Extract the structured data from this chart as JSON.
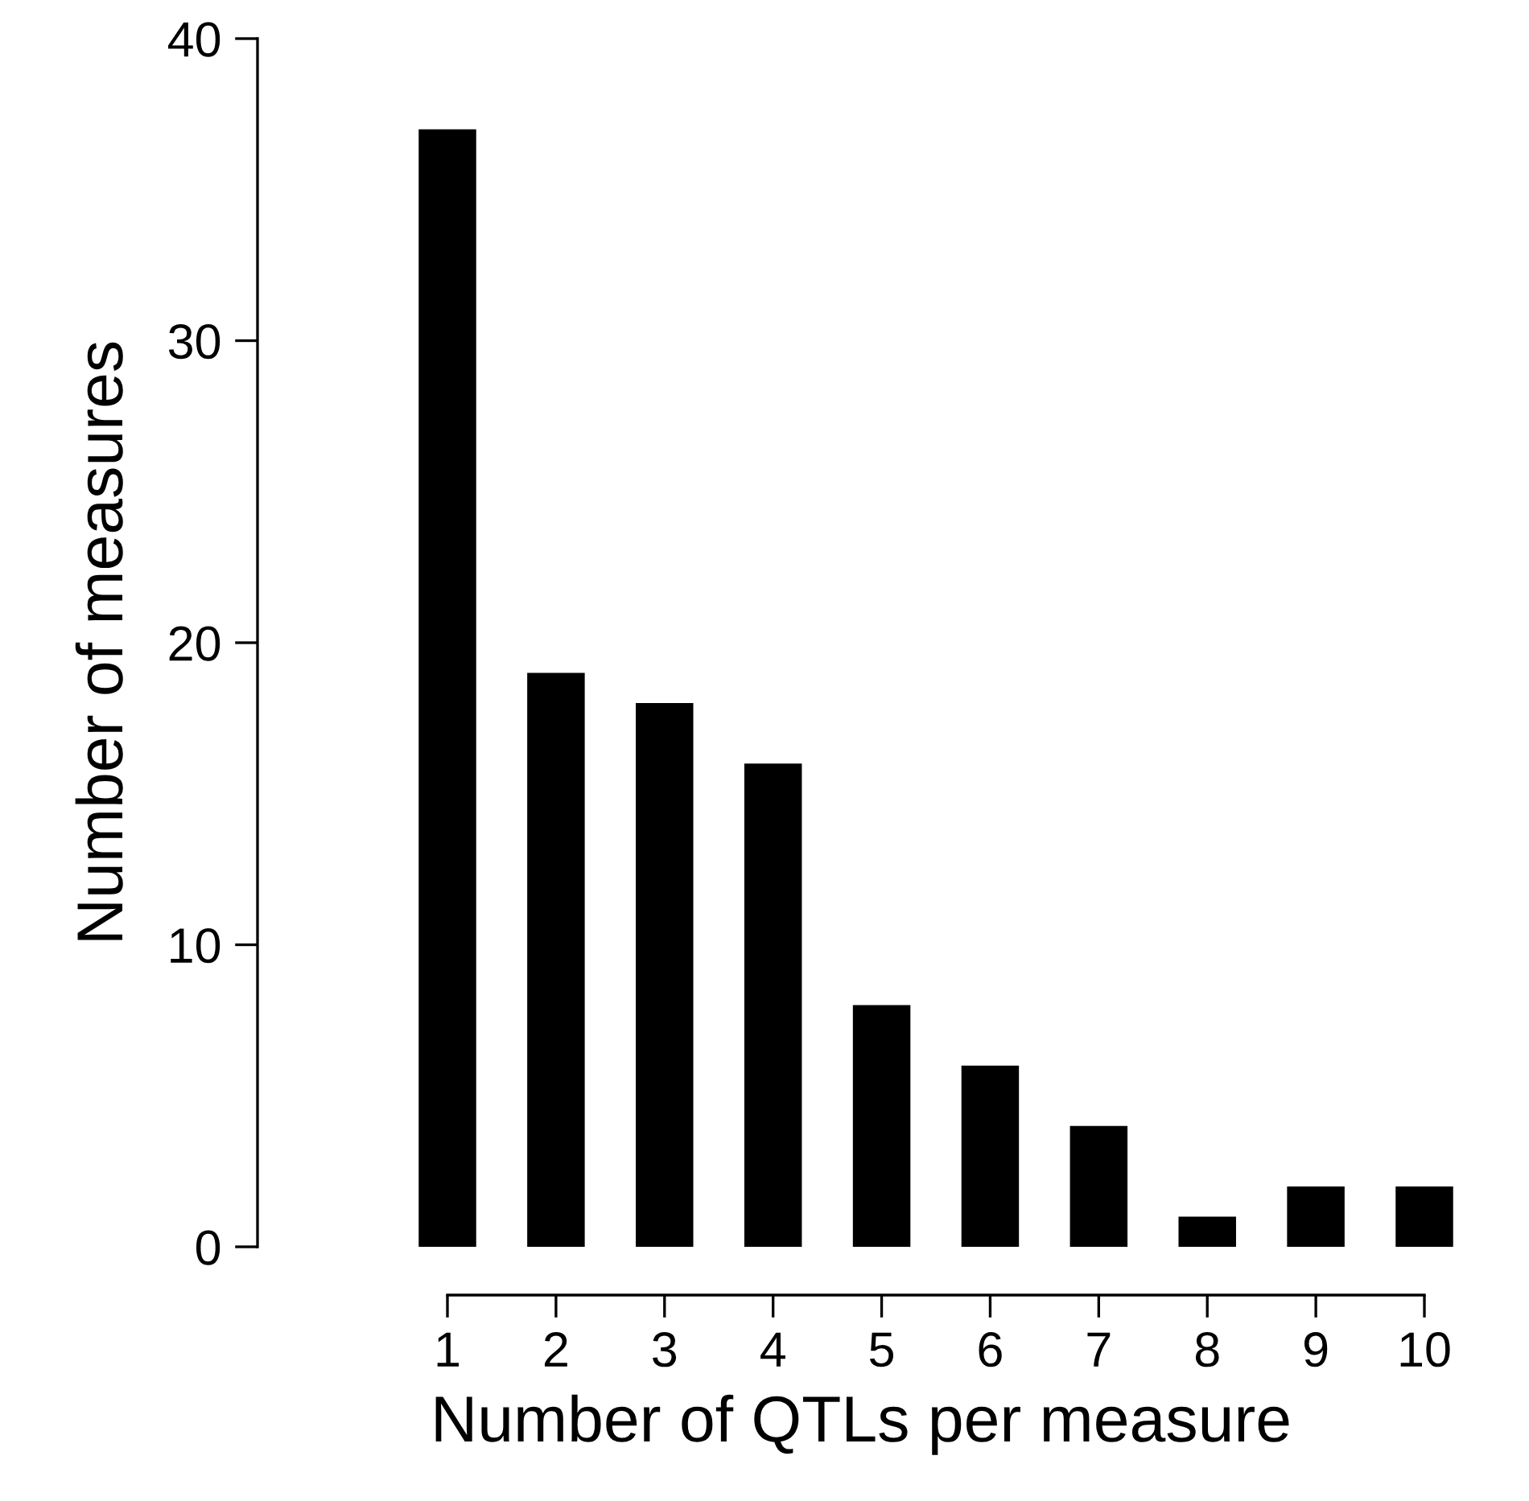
{
  "chart_data": {
    "type": "bar",
    "xlabel": "Number of QTLs per measure",
    "ylabel": "Number of measures",
    "categories": [
      "1",
      "2",
      "3",
      "4",
      "5",
      "6",
      "7",
      "8",
      "9",
      "10"
    ],
    "values": [
      37,
      19,
      18,
      16,
      8,
      6,
      4,
      1,
      2,
      2
    ],
    "color": "#000000",
    "ylim": [
      0,
      40
    ],
    "yticks": [
      0,
      10,
      20,
      30,
      40
    ]
  }
}
